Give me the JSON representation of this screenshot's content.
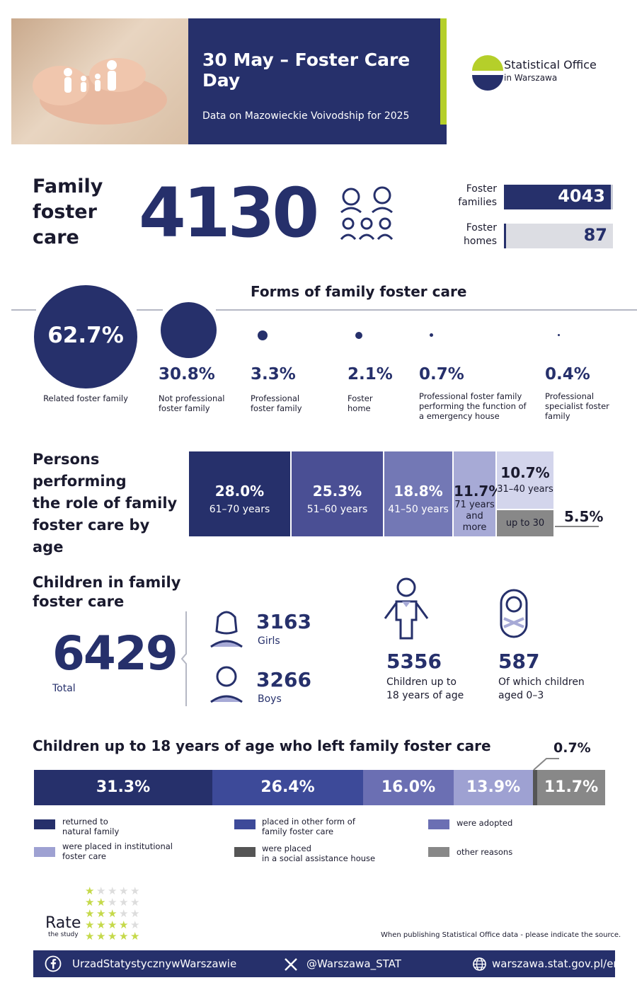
{
  "header": {
    "title": "30 May – Foster Care Day",
    "subtitle": "Data on Mazowieckie Voivodship for 2025"
  },
  "logo": {
    "line1": "Statistical Office",
    "line2": "in Warszawa",
    "icon": "half-circle-logo-icon"
  },
  "family_foster_care": {
    "title_lines": [
      "Family",
      "foster",
      "care"
    ],
    "total": "4130",
    "foster_families_label": [
      "Foster",
      "families"
    ],
    "foster_families_value": "4043",
    "foster_homes_label": [
      "Foster",
      "homes"
    ],
    "foster_homes_value": "87",
    "icon": "family-icon"
  },
  "forms": {
    "title": "Forms of family foster care",
    "items": [
      {
        "pct": "62.7%",
        "label": "Related foster family"
      },
      {
        "pct": "30.8%",
        "label": "Not professional foster family"
      },
      {
        "pct": "3.3%",
        "label": "Professional foster family"
      },
      {
        "pct": "2.1%",
        "label": "Foster home"
      },
      {
        "pct": "0.7%",
        "label": "Professional foster family performing the function of a emergency house"
      },
      {
        "pct": "0.4%",
        "label": "Professional specialist foster family"
      }
    ]
  },
  "age": {
    "title_lines": [
      "Persons performing",
      "the role of family",
      "foster care by age"
    ],
    "items": [
      {
        "pct": "28.0%",
        "label": "61–70 years",
        "color": "#26306b"
      },
      {
        "pct": "25.3%",
        "label": "51–60 years",
        "color": "#4a4f94"
      },
      {
        "pct": "18.8%",
        "label": "41–50 years",
        "color": "#7378b5"
      },
      {
        "pct": "11.7%",
        "label_lines": [
          "71 years",
          "and",
          "more"
        ],
        "color": "#a7aad6"
      },
      {
        "pct": "10.7%",
        "label": "31–40 years",
        "color": "#d3d5ec"
      },
      {
        "pct": "5.5%",
        "label": "up to 30",
        "color": "#888888"
      }
    ]
  },
  "children": {
    "title_lines": [
      "Children in family",
      "foster care"
    ],
    "total": "6429",
    "total_label": "Total",
    "girls_value": "3163",
    "girls_label": "Girls",
    "boys_value": "3266",
    "boys_label": "Boys",
    "under18_value": "5356",
    "under18_label_lines": [
      "Children up to",
      "18 years of age"
    ],
    "age03_value": "587",
    "age03_label_lines": [
      "Of which children",
      "aged 0–3"
    ]
  },
  "left_care": {
    "title": "Children up to 18 years of age who left family foster care",
    "segments": [
      {
        "pct": "31.3%",
        "color": "#26306b"
      },
      {
        "pct": "26.4%",
        "color": "#3d4a99"
      },
      {
        "pct": "16.0%",
        "color": "#6b6fb3"
      },
      {
        "pct": "13.9%",
        "color": "#9ea1d2"
      },
      {
        "pct": "0.7%",
        "color": "#555555"
      },
      {
        "pct": "11.7%",
        "color": "#888888"
      }
    ],
    "legend": [
      {
        "label_lines": [
          "returned to",
          "natural family"
        ],
        "color": "#26306b"
      },
      {
        "label_lines": [
          "placed in other form of",
          "family foster care"
        ],
        "color": "#3d4a99"
      },
      {
        "label_lines": [
          "were adopted"
        ],
        "color": "#6b6fb3"
      },
      {
        "label_lines": [
          "were placed in institutional",
          "foster care"
        ],
        "color": "#9ea1d2"
      },
      {
        "label_lines": [
          "were placed",
          "in a social assistance house"
        ],
        "color": "#555555"
      },
      {
        "label_lines": [
          "other reasons"
        ],
        "color": "#888888"
      }
    ]
  },
  "rate": {
    "title": "Rate",
    "subtitle": "the study"
  },
  "source_note": "When publishing Statistical Office data - please indicate the source.",
  "footer": {
    "facebook": "UrzadStatystycznywWarszawie",
    "x": "@Warszawa_STAT",
    "web": "warszawa.stat.gov.pl/en/"
  }
}
